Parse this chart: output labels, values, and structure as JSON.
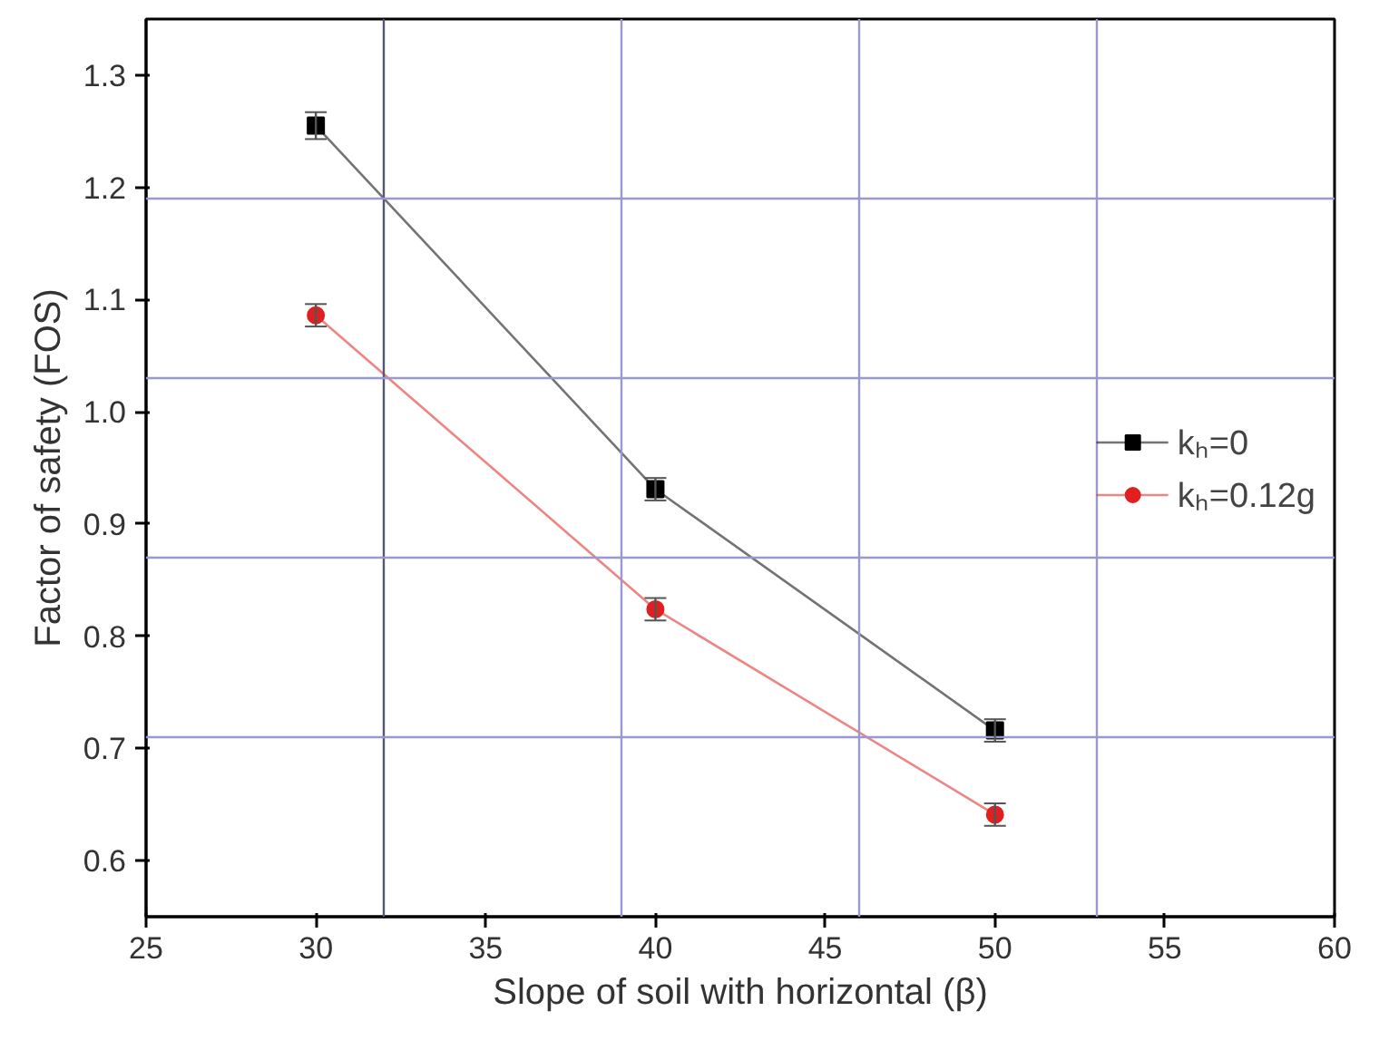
{
  "chart_data": {
    "type": "line",
    "xlabel": "Slope of soil with horizontal (β)",
    "ylabel": "Factor of safety (FOS)",
    "x": [
      30,
      40,
      50
    ],
    "series": [
      {
        "name": "kₕ=0",
        "color": "#000000",
        "marker": "square",
        "values": [
          1.255,
          0.931,
          0.716
        ],
        "errors": [
          0.012,
          0.01,
          0.01
        ]
      },
      {
        "name": "kₕ=0.12g",
        "color": "#e02020",
        "marker": "circle",
        "values": [
          1.086,
          0.824,
          0.641
        ],
        "errors": [
          0.01,
          0.01,
          0.01
        ]
      }
    ],
    "xlim": [
      25,
      60
    ],
    "xticks": [
      25,
      30,
      35,
      40,
      45,
      50,
      55,
      60
    ],
    "ylim": [
      0.55,
      1.35
    ],
    "yticks": [
      {
        "value": 0.6,
        "label": "0.6"
      },
      {
        "value": 0.7,
        "label": "0.7"
      },
      {
        "value": 0.8,
        "label": "0.8"
      },
      {
        "value": 0.9,
        "label": "0.9"
      },
      {
        "value": 1.0,
        "label": "1.0"
      },
      {
        "value": 1.1,
        "label": "1.1"
      },
      {
        "value": 1.2,
        "label": "1.2"
      },
      {
        "value": 1.3,
        "label": "1.3"
      }
    ],
    "ref_lines": [
      {
        "axis": "x",
        "value": 32,
        "color": "#55557a"
      },
      {
        "axis": "x",
        "value": 39,
        "color": "#9999cc"
      },
      {
        "axis": "x",
        "value": 46,
        "color": "#9999cc"
      },
      {
        "axis": "x",
        "value": 53,
        "color": "#9999cc"
      },
      {
        "axis": "y",
        "value": 1.19,
        "color": "#9999cc"
      },
      {
        "axis": "y",
        "value": 1.03,
        "color": "#9999cc"
      },
      {
        "axis": "y",
        "value": 0.87,
        "color": "#9999cc"
      },
      {
        "axis": "y",
        "value": 0.71,
        "color": "#9999cc"
      }
    ],
    "grid": false,
    "legend": "right",
    "line_style": "solid"
  }
}
